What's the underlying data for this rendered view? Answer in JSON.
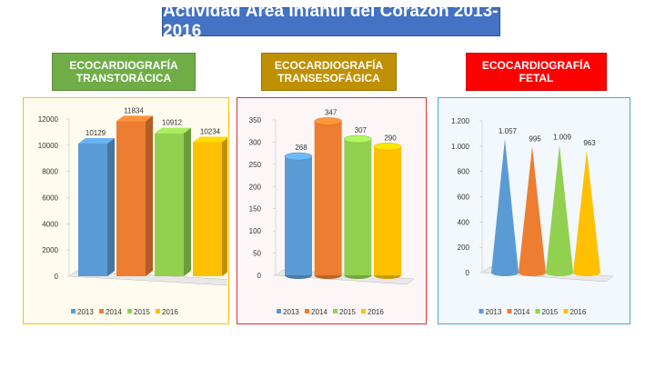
{
  "title": "Actividad Área Infantil del Corazón 2013-2016",
  "chart_data": [
    {
      "type": "bar",
      "title": "ECOCARDIOGRAFÍA TRANSTORÁCICA",
      "title_color": "#70ad47",
      "categories": [
        "2013",
        "2014",
        "2015",
        "2016"
      ],
      "values": [
        10129,
        11834,
        10912,
        10234
      ],
      "colors": [
        "#5b9bd5",
        "#ed7d31",
        "#92d050",
        "#ffc000"
      ],
      "ylim": [
        0,
        12000
      ],
      "yticks": [
        0,
        2000,
        4000,
        6000,
        8000,
        10000,
        12000
      ]
    },
    {
      "type": "cylinder",
      "title": "ECOCARDIOGRAFÍA TRANSESOFÁGICA",
      "title_color": "#bf9000",
      "categories": [
        "2013",
        "2014",
        "2015",
        "2016"
      ],
      "values": [
        268,
        347,
        307,
        290
      ],
      "colors": [
        "#5b9bd5",
        "#ed7d31",
        "#92d050",
        "#ffc000"
      ],
      "ylim": [
        0,
        350
      ],
      "yticks": [
        0,
        50,
        100,
        150,
        200,
        250,
        300,
        350
      ]
    },
    {
      "type": "cone",
      "title": "ECOCARDIOGRAFÍA FETAL",
      "title_color": "#ff0000",
      "categories": [
        "2013",
        "2014",
        "2015",
        "2016"
      ],
      "values": [
        1057,
        995,
        1009,
        963
      ],
      "value_labels": [
        "1.057",
        "995",
        "1.009",
        "963"
      ],
      "colors": [
        "#5b9bd5",
        "#ed7d31",
        "#92d050",
        "#ffc000"
      ],
      "ylim": [
        0,
        1200
      ],
      "yticks": [
        0,
        200,
        400,
        600,
        800,
        {
          "value": 1000,
          "label": "1.000"
        },
        {
          "value": 1200,
          "label": "1.200"
        }
      ]
    }
  ]
}
